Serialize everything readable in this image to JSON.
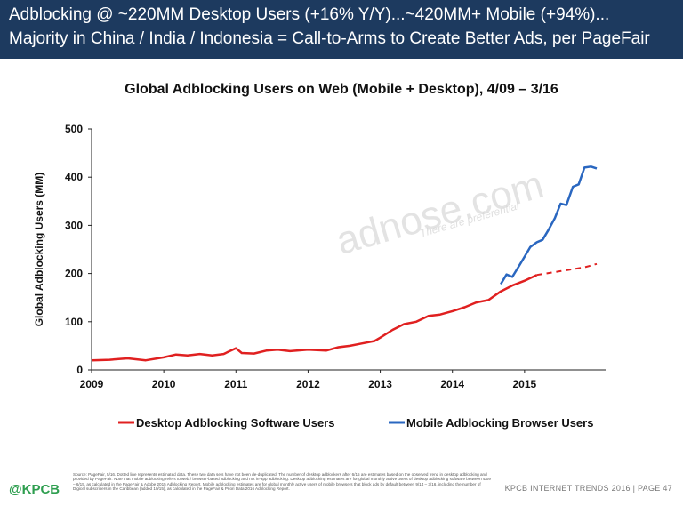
{
  "header": {
    "line1": "Adblocking @ ~220MM Desktop Users (+16% Y/Y)...~420MM+ Mobile (+94%)...",
    "line2": "Majority in China / India / Indonesia = Call-to-Arms to Create Better Ads, per PageFair"
  },
  "watermark": {
    "text": "adnose.com",
    "sub": "There are preferential"
  },
  "chart_data": {
    "type": "line",
    "title": "Global Adblocking Users on Web (Mobile + Desktop), 4/09 – 3/16",
    "xlabel": "",
    "ylabel": "Global Adblocking Users (MM)",
    "ylim": [
      0,
      500
    ],
    "xlim": [
      2009.0,
      2016.0
    ],
    "yticks": [
      "0",
      "100",
      "200",
      "300",
      "400",
      "500"
    ],
    "xticks": [
      "2009",
      "2010",
      "2011",
      "2012",
      "2013",
      "2014",
      "2015"
    ],
    "grid": false,
    "legend_position": "bottom",
    "series": [
      {
        "name": "Desktop Adblocking Software Users",
        "color": "#e02020",
        "x": [
          2009.0,
          2009.25,
          2009.5,
          2009.75,
          2010.0,
          2010.17,
          2010.33,
          2010.5,
          2010.67,
          2010.83,
          2011.0,
          2011.08,
          2011.25,
          2011.42,
          2011.58,
          2011.75,
          2012.0,
          2012.25,
          2012.42,
          2012.58,
          2012.75,
          2012.92,
          2013.0,
          2013.17,
          2013.33,
          2013.5,
          2013.67,
          2013.83,
          2014.0,
          2014.17,
          2014.33,
          2014.5,
          2014.67,
          2014.83,
          2015.0,
          2015.17
        ],
        "values": [
          20,
          21,
          24,
          20,
          26,
          32,
          30,
          33,
          30,
          33,
          45,
          35,
          34,
          40,
          42,
          39,
          42,
          40,
          47,
          50,
          55,
          60,
          67,
          83,
          95,
          100,
          112,
          115,
          122,
          130,
          140,
          145,
          163,
          175,
          185,
          197
        ]
      },
      {
        "name": "Mobile Adblocking Browser Users",
        "color": "#2a67c0",
        "x": [
          2014.67,
          2014.75,
          2014.83,
          2014.92,
          2015.0,
          2015.08,
          2015.17,
          2015.25,
          2015.33,
          2015.42,
          2015.5,
          2015.58,
          2015.67,
          2015.75,
          2015.83,
          2015.92,
          2016.0
        ],
        "values": [
          178,
          198,
          193,
          215,
          235,
          255,
          265,
          270,
          290,
          315,
          345,
          342,
          380,
          385,
          420,
          422,
          418
        ]
      },
      {
        "name": "",
        "color": "#e02020",
        "dashed": true,
        "x": [
          2015.17,
          2015.5,
          2015.83,
          2016.0
        ],
        "values": [
          197,
          205,
          213,
          220
        ]
      }
    ]
  },
  "source": "Source: PageFair, 5/16. Dotted line represents estimated data. These two data sets have not been de-duplicated. The number of desktop adblockers after 6/15 are estimates based on the observed trend in desktop adblocking and provided by PageFair. Note that mobile adblocking refers to web / browser-based adblocking and not in-app adblocking. Desktop adblocking estimates are for global monthly active users of desktop adblocking software between 4/09 – 6/15, as calculated in the PageFair & Adobe 2015 Adblocking Report. Mobile adblocking estimates are for global monthly active users of mobile browsers that block ads by default between 9/14 – 3/16, including the number of Digicel subscribers in the Caribbean (added 10/15), as calculated in the PageFair & Priori Data 2016 Adblocking Report.",
  "footer": {
    "logo": "@KPCB",
    "page_info": "KPCB INTERNET TRENDS 2016  |  PAGE 47"
  }
}
